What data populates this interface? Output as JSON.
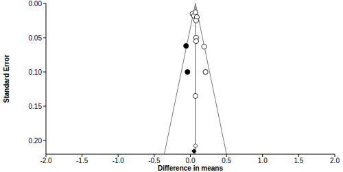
{
  "chart_data": {
    "type": "scatter",
    "x_label": "Difference in means",
    "y_label": "Standard Error",
    "xlim": [
      -2,
      2
    ],
    "xticks": [
      {
        "value": -2,
        "label": "-2.0"
      },
      {
        "value": -1.5,
        "label": "-1.5"
      },
      {
        "value": -1,
        "label": "-1.0"
      },
      {
        "value": -0.5,
        "label": "-0.5"
      },
      {
        "value": 0,
        "label": "0.0"
      },
      {
        "value": 0.5,
        "label": "0.5"
      },
      {
        "value": 1,
        "label": "1.0"
      },
      {
        "value": 1.5,
        "label": "1.5"
      },
      {
        "value": 2,
        "label": "2.0"
      }
    ],
    "ylim": [
      0,
      0.22
    ],
    "yticks": [
      {
        "value": 0,
        "label": "0.00"
      },
      {
        "value": 0.05,
        "label": "0.05"
      },
      {
        "value": 0.1,
        "label": "0.10"
      },
      {
        "value": 0.15,
        "label": "0.15"
      },
      {
        "value": 0.2,
        "label": "0.20"
      }
    ],
    "combined_estimate": 0.07,
    "adjusted_estimate": 0.05,
    "series": [
      {
        "color": "#000000",
        "marker": "open-circle",
        "x": [
          0.03,
          0.05,
          0.07,
          0.09,
          0.08,
          0.08,
          0.08,
          0.19,
          0.21,
          0.07
        ],
        "values": [
          0.015,
          0.018,
          0.013,
          0.02,
          0.025,
          0.05,
          0.055,
          0.063,
          0.1,
          0.135
        ]
      },
      {
        "color": "#000000",
        "marker": "circle",
        "x": [
          -0.06,
          -0.04
        ],
        "values": [
          0.062,
          0.1
        ]
      }
    ]
  }
}
